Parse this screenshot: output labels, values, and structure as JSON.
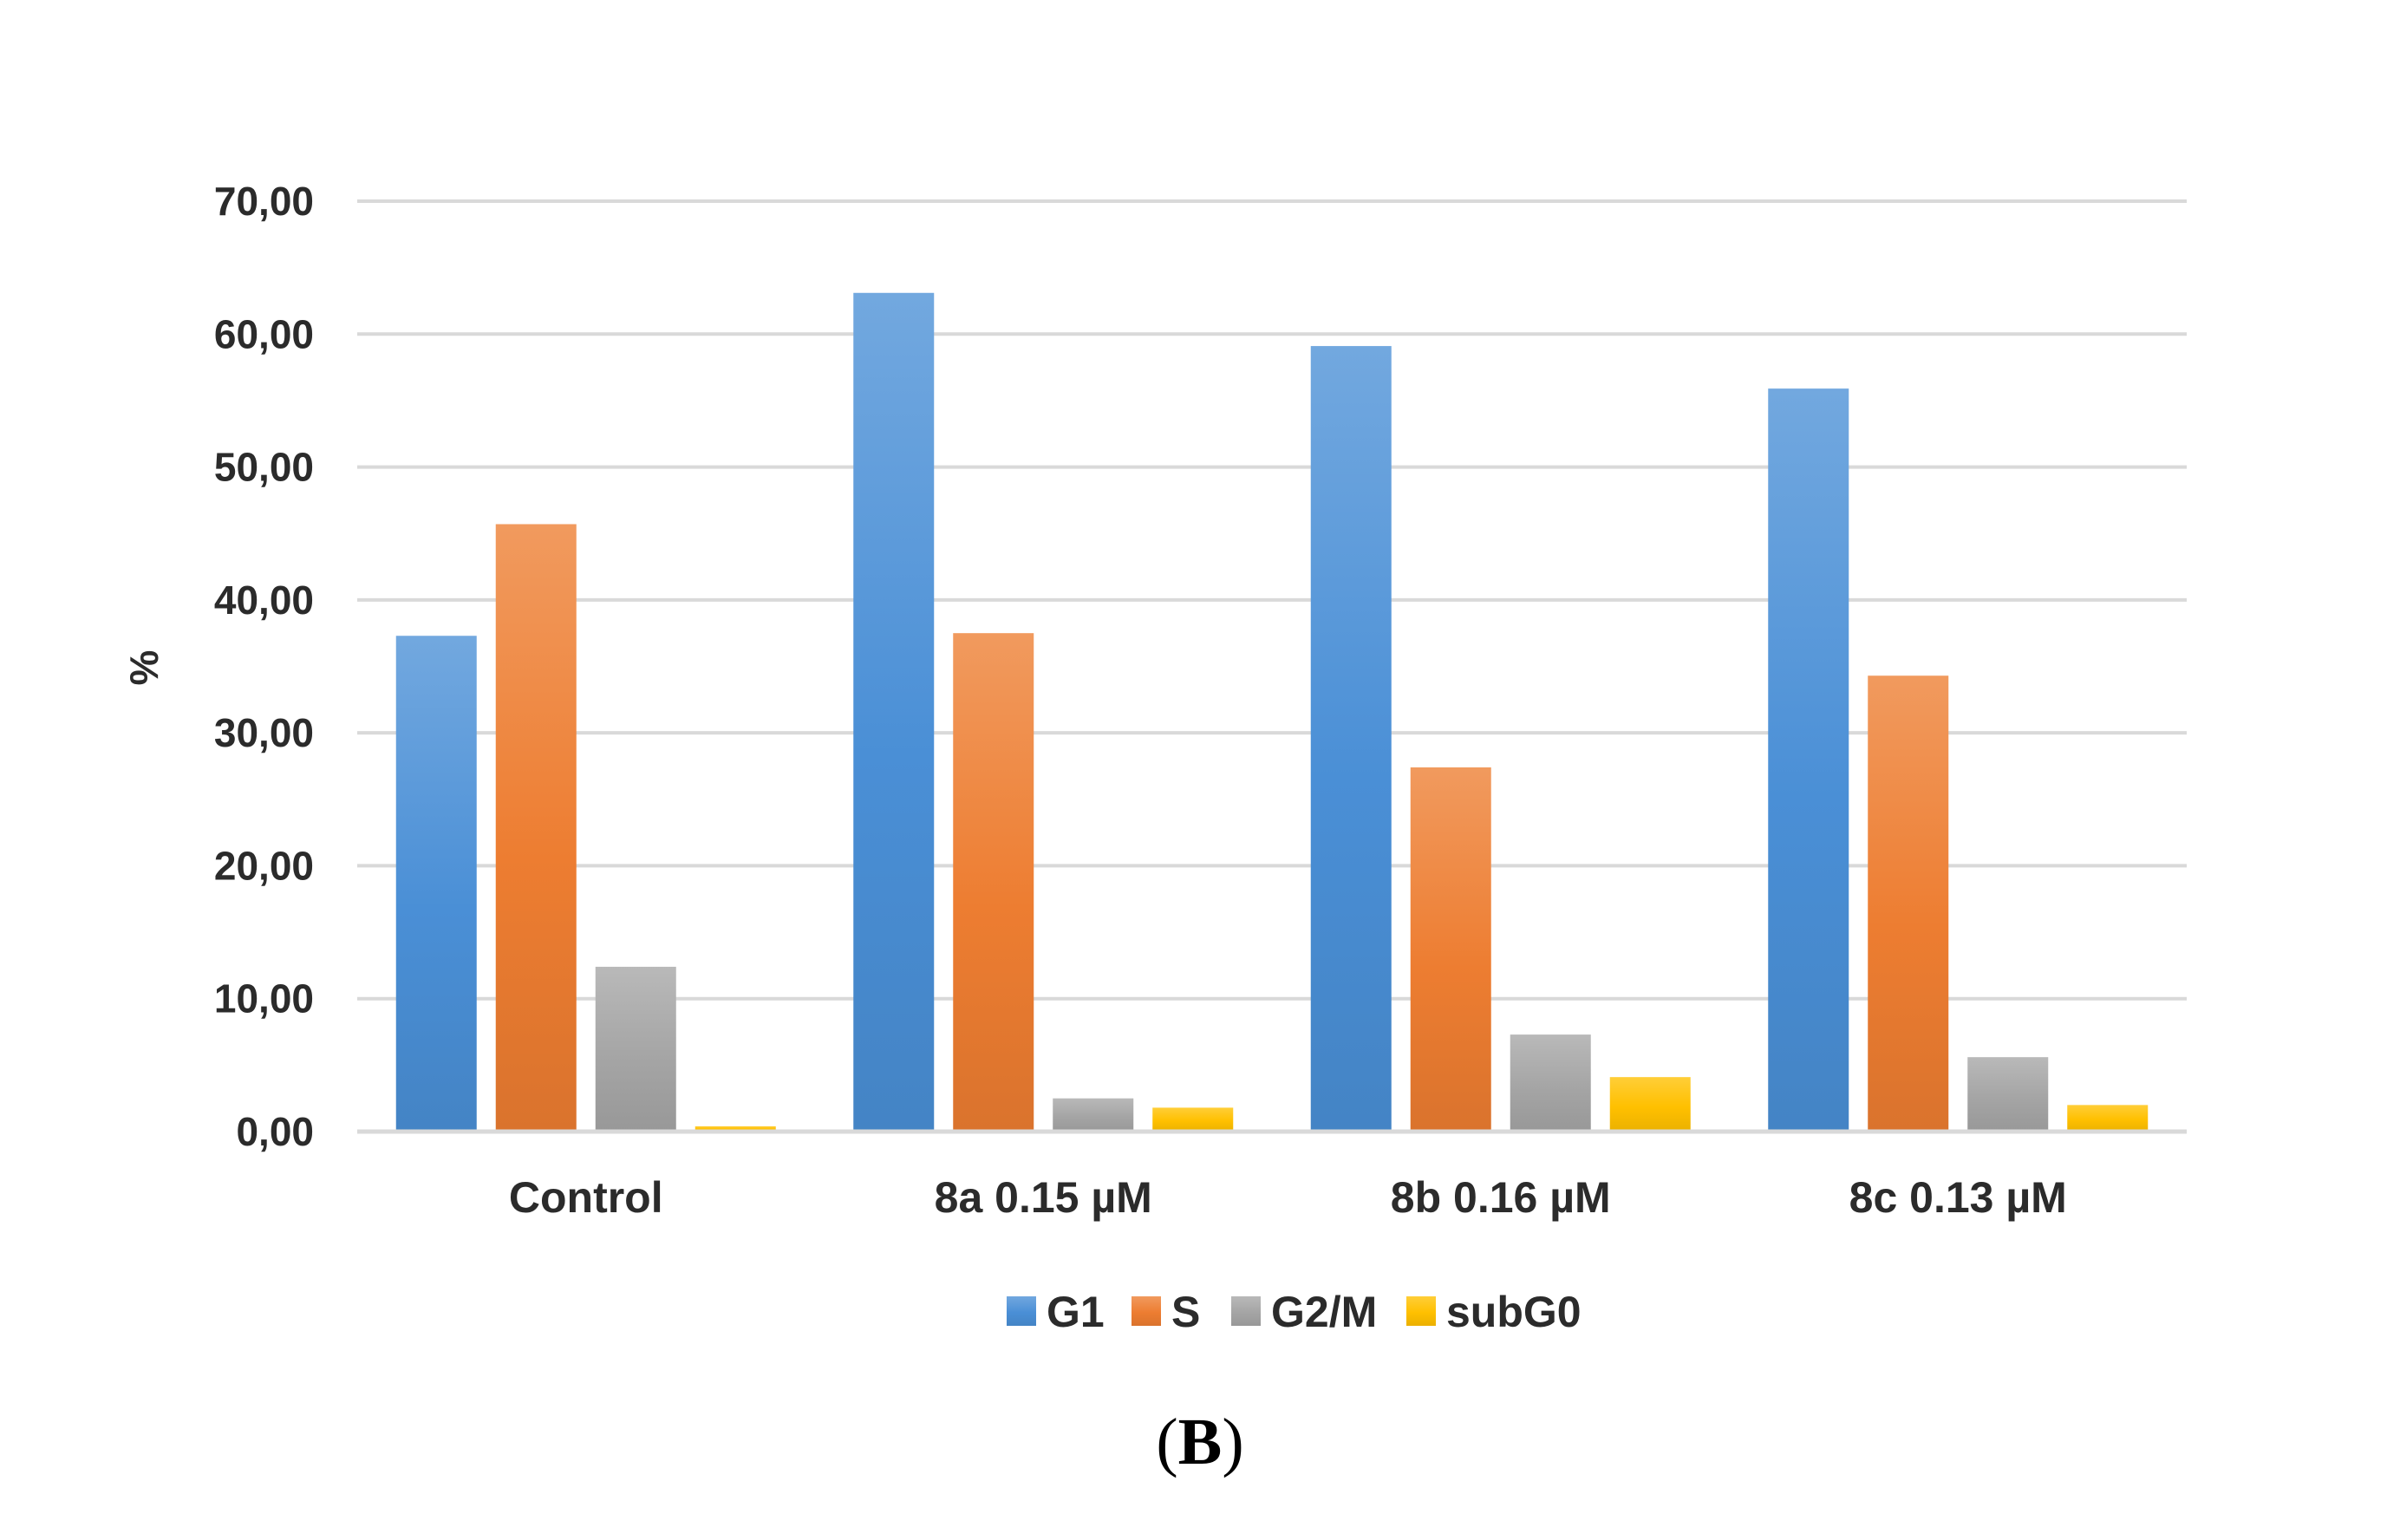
{
  "chart_data": {
    "type": "bar",
    "title": "",
    "xlabel": "",
    "ylabel": "%",
    "ylim": [
      0,
      70
    ],
    "ytick_step": 10,
    "ytick_labels": [
      "0,00",
      "10,00",
      "20,00",
      "30,00",
      "40,00",
      "50,00",
      "60,00",
      "70,00"
    ],
    "grid": true,
    "legend_position": "bottom",
    "categories": [
      "Control",
      "8a 0.15 µM",
      "8b 0.16 µM",
      "8c 0.13 µM"
    ],
    "series": [
      {
        "name": "G1",
        "color": "#4a8fd6",
        "values": [
          37.3,
          63.1,
          59.1,
          55.9
        ]
      },
      {
        "name": "S",
        "color": "#ed7d31",
        "values": [
          45.7,
          37.5,
          27.4,
          34.3
        ]
      },
      {
        "name": "G2/M",
        "color": "#a5a5a5",
        "values": [
          12.4,
          2.5,
          7.3,
          5.6
        ]
      },
      {
        "name": "subG0",
        "color": "#ffc000",
        "values": [
          0.4,
          1.8,
          4.1,
          2.0
        ]
      }
    ]
  },
  "panel_label": {
    "open": "(",
    "letter": "B",
    "close": ")"
  }
}
